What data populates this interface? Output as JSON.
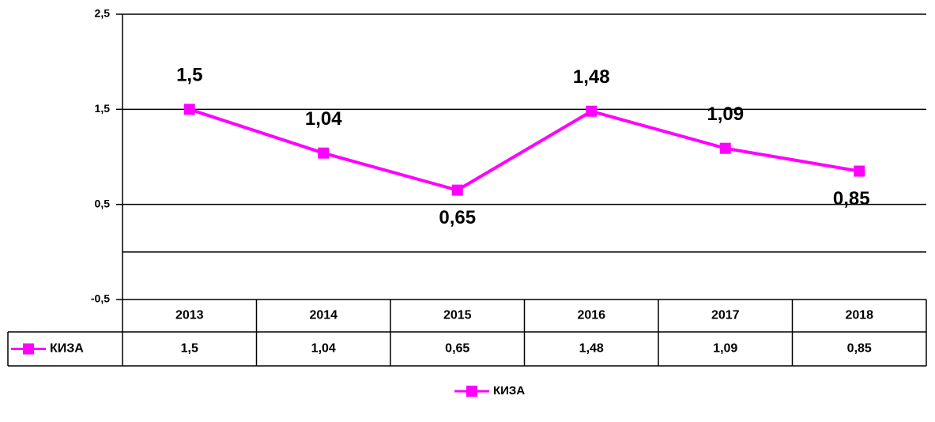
{
  "chart_data": {
    "type": "line",
    "categories": [
      "2013",
      "2014",
      "2015",
      "2016",
      "2017",
      "2018"
    ],
    "series": [
      {
        "name": "КИЗА",
        "color": "#ff00ff",
        "values": [
          1.5,
          1.04,
          0.65,
          1.48,
          1.09,
          0.85
        ],
        "value_labels": [
          "1,5",
          "1,04",
          "0,65",
          "1,48",
          "1,09",
          "0,85"
        ]
      }
    ],
    "ylim": [
      -0.5,
      2.5
    ],
    "yticks": [
      {
        "value": -0.5,
        "label": "-0,5"
      },
      {
        "value": 0.5,
        "label": "0,5"
      },
      {
        "value": 1.5,
        "label": "1,5"
      },
      {
        "value": 2.5,
        "label": "2,5"
      }
    ],
    "grid": true,
    "legend": "bottom",
    "data_table": true
  }
}
